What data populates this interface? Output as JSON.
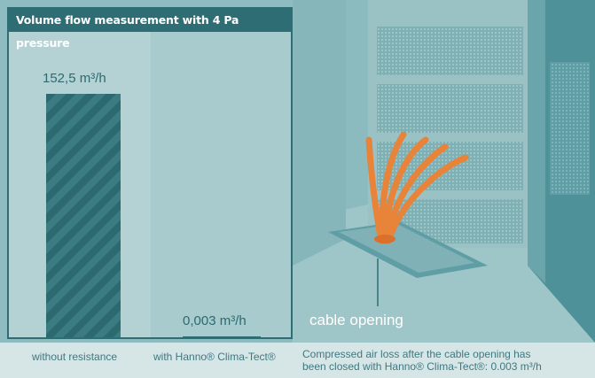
{
  "title": "Volume flow measurement with 4 Pa pressure",
  "chart_data": {
    "type": "bar",
    "categories": [
      "without resistance",
      "with Hanno® Clima-Tect®"
    ],
    "values": [
      152.5,
      0.003
    ],
    "value_labels": [
      "152,5 m³/h",
      "0,003 m³/h"
    ],
    "unit": "m³/h",
    "ylim": [
      0,
      165
    ],
    "colors": {
      "bar": "#2c6a70",
      "header": "#2f6d74"
    }
  },
  "scene": {
    "label": "cable opening"
  },
  "captions": {
    "without_resistance": "without resistance",
    "with_product": "with Hanno® Clima-Tect®",
    "description_line1": "Compressed air loss after the cable opening has",
    "description_line2": "been closed with Hanno® Clima-Tect®: 0.003 m³/h"
  }
}
